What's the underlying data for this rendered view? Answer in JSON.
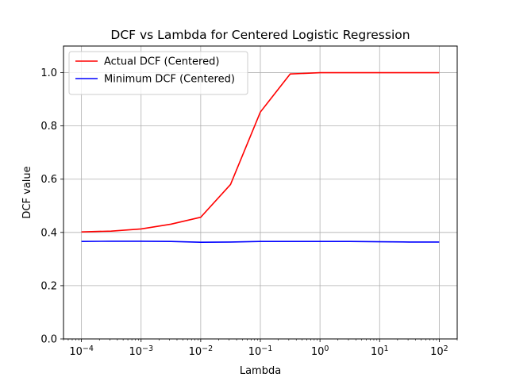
{
  "chart_data": {
    "type": "line",
    "title": "DCF vs Lambda for Centered Logistic Regression",
    "xlabel": "Lambda",
    "ylabel": "DCF value",
    "xscale": "log",
    "xlim": [
      5e-05,
      200
    ],
    "ylim": [
      0,
      1.1
    ],
    "grid": true,
    "legend_position": "top-left",
    "x": [
      0.0001,
      0.000316,
      0.001,
      0.00316,
      0.01,
      0.0316,
      0.1,
      0.316,
      1,
      3.16,
      10,
      31.6,
      100
    ],
    "x_ticks": [
      0.0001,
      0.001,
      0.01,
      0.1,
      1,
      10,
      100
    ],
    "x_tick_exponents": [
      "−4",
      "−3",
      "−2",
      "−1",
      "0",
      "1",
      "2"
    ],
    "y_ticks": [
      0,
      0.2,
      0.4,
      0.6,
      0.8,
      1.0
    ],
    "y_tick_labels": [
      "0.0",
      "0.2",
      "0.4",
      "0.6",
      "0.8",
      "1.0"
    ],
    "series": [
      {
        "name": "Actual DCF (Centered)",
        "color": "#ff0000",
        "values": [
          0.402,
          0.405,
          0.413,
          0.431,
          0.457,
          0.58,
          0.852,
          0.995,
          1.0,
          1.0,
          1.0,
          1.0,
          1.0
        ]
      },
      {
        "name": "Minimum DCF (Centered)",
        "color": "#0000ff",
        "values": [
          0.366,
          0.367,
          0.367,
          0.366,
          0.363,
          0.364,
          0.366,
          0.366,
          0.366,
          0.366,
          0.365,
          0.364,
          0.364
        ]
      }
    ]
  }
}
